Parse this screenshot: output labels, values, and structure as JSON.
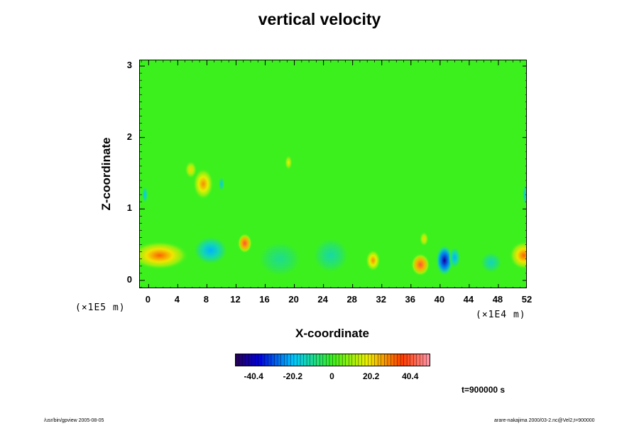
{
  "chart_data": {
    "type": "heatmap",
    "title": "vertical velocity",
    "xlabel": "X-coordinate",
    "ylabel": "Z-coordinate",
    "x_unit_note": "(×1E4 m)",
    "y_unit_note": "(×1E5 m)",
    "xlim": [
      -1.2,
      52
    ],
    "ylim": [
      -0.12,
      3.08
    ],
    "x_ticks": [
      "0",
      "4",
      "8",
      "12",
      "16",
      "20",
      "24",
      "28",
      "32",
      "36",
      "40",
      "44",
      "48",
      "52"
    ],
    "y_ticks": [
      "0",
      "1",
      "2",
      "3"
    ],
    "colorbar": {
      "min": -50,
      "max": 50,
      "tick_labels": [
        "-40.4",
        "-20.2",
        "0",
        "20.2",
        "40.4"
      ],
      "tick_values": [
        -40.4,
        -20.2,
        0,
        20.2,
        40.4
      ]
    },
    "background_value": 0,
    "features": [
      {
        "x": 1.5,
        "z": 0.35,
        "value": 32,
        "rx": 4.0,
        "rz": 0.2
      },
      {
        "x": 8.5,
        "z": 0.42,
        "value": -22,
        "rx": 2.4,
        "rz": 0.2
      },
      {
        "x": 13.2,
        "z": 0.52,
        "value": 40,
        "rx": 1.0,
        "rz": 0.14
      },
      {
        "x": 7.5,
        "z": 1.35,
        "value": 28,
        "rx": 1.4,
        "rz": 0.22
      },
      {
        "x": 5.8,
        "z": 1.55,
        "value": 20,
        "rx": 0.8,
        "rz": 0.12
      },
      {
        "x": 10.0,
        "z": 1.35,
        "value": -18,
        "rx": 0.4,
        "rz": 0.1
      },
      {
        "x": 19.2,
        "z": 1.65,
        "value": 18,
        "rx": 0.5,
        "rz": 0.1
      },
      {
        "x": 30.8,
        "z": 0.28,
        "value": 28,
        "rx": 1.0,
        "rz": 0.15
      },
      {
        "x": 37.3,
        "z": 0.22,
        "value": 40,
        "rx": 1.3,
        "rz": 0.16
      },
      {
        "x": 37.8,
        "z": 0.58,
        "value": 20,
        "rx": 0.6,
        "rz": 0.1
      },
      {
        "x": 40.6,
        "z": 0.28,
        "value": -44,
        "rx": 1.2,
        "rz": 0.22
      },
      {
        "x": 42.0,
        "z": 0.32,
        "value": -22,
        "rx": 0.8,
        "rz": 0.15
      },
      {
        "x": 51.5,
        "z": 0.35,
        "value": 32,
        "rx": 2.0,
        "rz": 0.2
      },
      {
        "x": 18.0,
        "z": 0.3,
        "value": -10,
        "rx": 3.0,
        "rz": 0.25
      },
      {
        "x": 25.0,
        "z": 0.35,
        "value": -12,
        "rx": 2.5,
        "rz": 0.25
      },
      {
        "x": 47.0,
        "z": 0.25,
        "value": -14,
        "rx": 1.5,
        "rz": 0.15
      },
      {
        "x": -0.5,
        "z": 1.2,
        "value": -20,
        "rx": 0.4,
        "rz": 0.12
      },
      {
        "x": 51.7,
        "z": 1.2,
        "value": -18,
        "rx": 0.4,
        "rz": 0.15
      }
    ]
  },
  "time_label": "t=900000 s",
  "footer_left": "/usr/bin/gpview 2005-08-05",
  "footer_right": "arare-nakajima 2000/03-2.nc@Vel2,t=900000"
}
